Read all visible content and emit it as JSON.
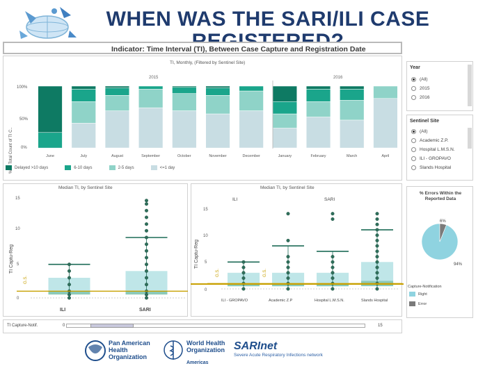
{
  "slide": {
    "title": "WHEN WAS THE SARI/ILI CASE REGISTERED?"
  },
  "dashboard": {
    "indicator": "Indicator: Time Interval (TI), Between Case Capture and Registration Date",
    "monthly": {
      "title": "TI, Monthly, (Filtered by Sentinel Site)",
      "years": [
        "2015",
        "2016"
      ],
      "y_label": "% of Total Count of TI C..",
      "y_ticks": [
        "100%",
        "50%",
        "0%"
      ],
      "legend": [
        {
          "label": "Delayed >10 days",
          "color": "#0e7a63"
        },
        {
          "label": "6-10 days",
          "color": "#1aa58b"
        },
        {
          "label": "2-5 days",
          "color": "#8fd3c8"
        },
        {
          "label": "<=1 day",
          "color": "#c8dde3"
        }
      ]
    },
    "median_left": {
      "title": "Median TI, by Sentinel Site",
      "y_label": "TI Captu-Reg",
      "y_ticks": [
        "15",
        "10",
        "5",
        "0"
      ],
      "gs_label": "G.S.",
      "categories": [
        "ILI",
        "SARI"
      ]
    },
    "median_right": {
      "title": "Median TI, by Sentinel Site",
      "y_label": "TI Captu-Reg",
      "y_ticks": [
        "15",
        "10",
        "5",
        "0"
      ],
      "gs_label": "G.S.",
      "groups": [
        "ILI",
        "SARI"
      ],
      "categories": [
        "ILI - GROPAVO",
        "Academic Z.P",
        "Hospital L.M.S.N.",
        "Slands Hospital"
      ]
    },
    "filters": {
      "year": {
        "title": "Year",
        "options": [
          "(All)",
          "2015",
          "2016"
        ],
        "selected": 0
      },
      "site": {
        "title": "Sentinel Site",
        "options": [
          "(All)",
          "Academic Z.P.",
          "Hospital L.M.S.N.",
          "ILI - GROPAVO",
          "Slands Hospital"
        ],
        "selected": 0
      }
    },
    "errors": {
      "title": "% Errors Within the Reported Data",
      "right_pct": "94%",
      "error_pct": "6%",
      "legend_title": "Capture-Notification",
      "legend": [
        {
          "label": "Right",
          "color": "#8fd3e0"
        },
        {
          "label": "Error",
          "color": "#7a7a7a"
        }
      ]
    },
    "slider": {
      "label": "TI Capture-Notif.",
      "min": "0",
      "max": "15"
    }
  },
  "logos": {
    "paho": "Pan American Health Organization",
    "who": "World Health Organization",
    "who_region": "Americas",
    "sarinet_name": "SARInet",
    "sarinet_tag": "Severe Acute Respiratory Infections network"
  },
  "chart_data": [
    {
      "type": "bar",
      "stacked": true,
      "title": "TI, Monthly, (Filtered by Sentinel Site)",
      "categories": [
        "June",
        "July",
        "August",
        "September",
        "October",
        "November",
        "December",
        "January",
        "February",
        "March",
        "April"
      ],
      "ylabel": "% of Total Count of TI C..",
      "ylim": [
        0,
        100
      ],
      "series": [
        {
          "name": "Delayed >10 days",
          "values": [
            75,
            5,
            3,
            0,
            2,
            3,
            0,
            25,
            5,
            5,
            0
          ]
        },
        {
          "name": "6-10 days",
          "values": [
            25,
            20,
            12,
            5,
            10,
            12,
            8,
            20,
            20,
            18,
            0
          ]
        },
        {
          "name": "2-5 days",
          "values": [
            0,
            35,
            25,
            30,
            28,
            30,
            32,
            23,
            25,
            32,
            20
          ]
        },
        {
          "name": "<=1 day",
          "values": [
            0,
            40,
            60,
            65,
            60,
            55,
            60,
            32,
            50,
            45,
            80
          ]
        }
      ]
    },
    {
      "type": "scatter",
      "title": "Median TI, by Sentinel Site",
      "categories": [
        "ILI",
        "SARI"
      ],
      "ylabel": "TI Captu-Reg",
      "ylim": [
        0,
        15
      ],
      "gs": 1,
      "box": [
        {
          "q1": 0.5,
          "median": 1,
          "q3": 3,
          "whisker": 5
        },
        {
          "q1": 0.5,
          "median": 1,
          "q3": 4,
          "whisker": 9
        }
      ],
      "points": [
        [
          0,
          0.5,
          1,
          2,
          3,
          4,
          5
        ],
        [
          0,
          0.5,
          1,
          2,
          3,
          4,
          5,
          6,
          7,
          8,
          9,
          10,
          11,
          12,
          13,
          14,
          14.5
        ]
      ]
    },
    {
      "type": "scatter",
      "title": "Median TI, by Sentinel Site",
      "categories": [
        "ILI - GROPAVO",
        "Academic Z.P",
        "Hospital L.M.S.N.",
        "Slands Hospital"
      ],
      "ylabel": "TI Captu-Reg",
      "ylim": [
        0,
        15
      ],
      "gs": 1,
      "box": [
        {
          "q1": 0.5,
          "median": 1,
          "q3": 3,
          "whisker": 5
        },
        {
          "q1": 0.5,
          "median": 1,
          "q3": 3,
          "whisker": 8
        },
        {
          "q1": 0.5,
          "median": 1,
          "q3": 3,
          "whisker": 7
        },
        {
          "q1": 0.5,
          "median": 1.5,
          "q3": 5,
          "whisker": 11
        }
      ],
      "points": [
        [
          0,
          1,
          2,
          3,
          4,
          5
        ],
        [
          0,
          1,
          2,
          3,
          4,
          5,
          6,
          9,
          14
        ],
        [
          0,
          1,
          2,
          3,
          4,
          5,
          6,
          13,
          14
        ],
        [
          0,
          1,
          2,
          3,
          4,
          5,
          6,
          7,
          8,
          9,
          10,
          11,
          12,
          13,
          14
        ]
      ]
    },
    {
      "type": "pie",
      "title": "% Errors Within the Reported Data",
      "categories": [
        "Right",
        "Error"
      ],
      "values": [
        94,
        6
      ]
    }
  ]
}
